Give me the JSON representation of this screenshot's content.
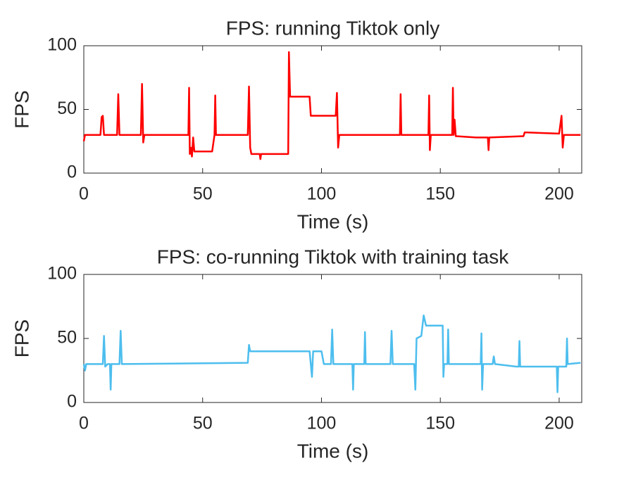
{
  "chart_data": [
    {
      "type": "line",
      "title": "FPS: running Tiktok only",
      "xlabel": "Time (s)",
      "ylabel": "FPS",
      "color": "#ff0000",
      "xlim": [
        0,
        209.5
      ],
      "ylim": [
        0,
        100
      ],
      "xticks": [
        0,
        50,
        100,
        150,
        200
      ],
      "yticks": [
        0,
        50,
        100
      ],
      "x": [
        0,
        0.5,
        7,
        7.5,
        8,
        8.5,
        14,
        14.5,
        15,
        24,
        24.5,
        25,
        25.5,
        44,
        44.3,
        44.6,
        45,
        45.5,
        46,
        46.5,
        54,
        55,
        55.3,
        55.6,
        69,
        69.5,
        70,
        70.5,
        74,
        74.3,
        74.6,
        86,
        86.3,
        86.8,
        95,
        95.5,
        106,
        106.5,
        107,
        107.5,
        133,
        133.3,
        133.6,
        145,
        145.3,
        145.6,
        146,
        155,
        155.3,
        155.6,
        156,
        156.5,
        165,
        170,
        170.3,
        170.6,
        185,
        185.5,
        200,
        201,
        201.5,
        202,
        209
      ],
      "values": [
        25,
        30,
        30,
        44,
        45,
        30,
        30,
        62,
        30,
        30,
        70,
        24,
        30,
        30,
        67,
        15,
        20,
        13,
        28,
        17,
        17,
        30,
        61,
        30,
        30,
        68,
        20,
        15,
        15,
        11,
        15,
        15,
        95,
        60,
        60,
        45,
        45,
        63,
        20,
        30,
        30,
        62,
        30,
        30,
        61,
        18,
        30,
        30,
        67,
        30,
        42,
        29,
        28,
        28,
        18,
        28,
        29,
        32,
        31,
        45,
        20,
        30,
        30
      ]
    },
    {
      "type": "line",
      "title": "FPS: co-running Tiktok with training task",
      "xlabel": "Time (s)",
      "ylabel": "FPS",
      "color": "#4dbeee",
      "xlim": [
        0,
        209.5
      ],
      "ylim": [
        0,
        100
      ],
      "xticks": [
        0,
        50,
        100,
        150,
        200
      ],
      "yticks": [
        0,
        50,
        100
      ],
      "x": [
        0,
        0.5,
        1,
        8,
        8.5,
        9,
        10,
        11,
        11.3,
        11.6,
        15,
        15.5,
        16,
        69,
        69.5,
        70,
        95,
        96,
        96.5,
        100,
        101,
        104,
        104.5,
        105,
        113,
        113.3,
        113.6,
        118,
        118.3,
        118.6,
        129,
        129.5,
        130,
        139,
        139.5,
        140,
        142,
        143,
        144,
        151,
        151.3,
        151.6,
        153,
        153.3,
        153.6,
        167,
        167.3,
        167.6,
        168,
        172,
        172.5,
        173,
        182,
        183,
        183.3,
        183.6,
        199,
        199.3,
        199.6,
        203,
        203.3,
        203.6,
        209
      ],
      "values": [
        30,
        25,
        30,
        30,
        52,
        28,
        30,
        30,
        10,
        30,
        30,
        56,
        30,
        31,
        45,
        40,
        40,
        20,
        40,
        40,
        30,
        30,
        57,
        30,
        30,
        10,
        30,
        30,
        55,
        30,
        30,
        56,
        30,
        30,
        10,
        50,
        52,
        68,
        60,
        60,
        20,
        30,
        30,
        57,
        30,
        30,
        54,
        10,
        30,
        30,
        36,
        30,
        28,
        28,
        48,
        28,
        28,
        8,
        28,
        28,
        50,
        30,
        31
      ]
    }
  ]
}
